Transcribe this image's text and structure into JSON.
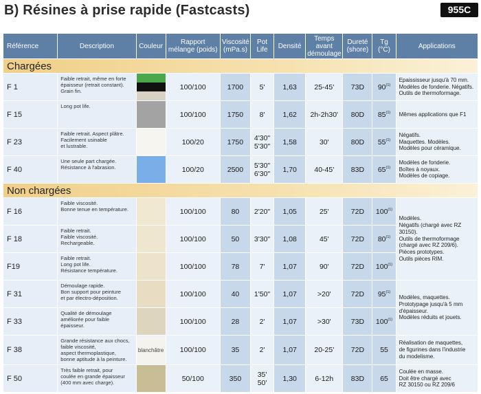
{
  "header": {
    "title": "B) Résines à prise rapide (Fastcasts)",
    "badge": "955C"
  },
  "columns": [
    "Référence",
    "Description",
    "Couleur",
    "Rapport mélange (poids)",
    "Viscosité (mPa.s)",
    "Pot Life",
    "Densité",
    "Temps avant démoulage",
    "Dureté (shore)",
    "Tg (°C)",
    "Applications"
  ],
  "sections": {
    "charged": "Chargées",
    "uncharged": "Non chargées"
  },
  "charged_rows": [
    {
      "ref": "F 1",
      "desc": [
        "Faible retrait, même en forte",
        "épaisseur (retrait constant).",
        "Grain fin."
      ],
      "colors": [
        "#4aa84a",
        "#111111",
        "#d8d2c4"
      ],
      "ratio": "100/100",
      "viscosity": "1700",
      "potlife": [
        "5'"
      ],
      "density": "1,63",
      "demold": "25-45'",
      "hardness": "73D",
      "tg": "90",
      "tg_note": "(1)",
      "apps": [
        "Epaississeur jusqu'à 70 mm.",
        "Modèles de fonderie. Négatifs.",
        "Outils de thermoformage."
      ]
    },
    {
      "ref": "F 15",
      "desc": [
        "Long pot life."
      ],
      "colors": [
        "#a3a3a3"
      ],
      "ratio": "100/100",
      "viscosity": "1750",
      "potlife": [
        "8'"
      ],
      "density": "1,62",
      "demold": "2h-2h30'",
      "hardness": "80D",
      "tg": "85",
      "tg_note": "(1)",
      "apps": [
        "Mêmes applications que F1"
      ]
    },
    {
      "ref": "F 23",
      "desc": [
        "Faible retrait. Aspect plâtre.",
        "Facilement usinable",
        "et lustrable."
      ],
      "colors": [
        "#f7f5f0"
      ],
      "ratio": "100/20",
      "viscosity": "1750",
      "potlife": [
        "4'30\"",
        "5'30\""
      ],
      "density": "1,58",
      "demold": "30'",
      "hardness": "80D",
      "tg": "55",
      "tg_note": "(1)",
      "apps": [
        "Négatifs.",
        "Maquettes. Modèles.",
        "Modèles pour céramique."
      ]
    },
    {
      "ref": "F 40",
      "desc": [
        "Une seule part chargée.",
        "Résistance à l'abrasion."
      ],
      "colors": [
        "#7aaee8"
      ],
      "ratio": "100/20",
      "viscosity": "2500",
      "potlife": [
        "5'30\"",
        "6'30\""
      ],
      "density": "1,70",
      "demold": "40-45'",
      "hardness": "83D",
      "tg": "65",
      "tg_note": "(1)",
      "apps": [
        "Modèles de fonderie.",
        "Boîtes à noyaux.",
        "Modèles de copiage."
      ]
    }
  ],
  "uncharged_rows": [
    {
      "ref": "F 16",
      "desc": [
        "Faible viscosité.",
        "Bonne tenue en température."
      ],
      "color": "#f1e8d2",
      "color_text": "",
      "ratio": "100/100",
      "viscosity": "80",
      "potlife": [
        "2'20\""
      ],
      "density": "1,05",
      "demold": "25'",
      "hardness": "72D",
      "tg": "100",
      "tg_note": "(1)"
    },
    {
      "ref": "F 18",
      "desc": [
        "Faible retrait.",
        "Faible viscosité.",
        "Rechargeable."
      ],
      "color": "#efe6d0",
      "color_text": "",
      "ratio": "100/100",
      "viscosity": "50",
      "potlife": [
        "3'30\""
      ],
      "density": "1,08",
      "demold": "45'",
      "hardness": "72D",
      "tg": "80",
      "tg_note": "(1)"
    },
    {
      "ref": "F19",
      "desc": [
        "Faible retrait.",
        "Long pot life.",
        "Résistance température."
      ],
      "color": "#ede3cb",
      "color_text": "",
      "ratio": "100/100",
      "viscosity": "78",
      "potlife": [
        "7'"
      ],
      "density": "1,07",
      "demold": "90'",
      "hardness": "72D",
      "tg": "100",
      "tg_note": "(1)"
    },
    {
      "ref": "F 31",
      "desc": [
        "Démoulage rapide.",
        "Bon support pour peinture",
        "et par électro-déposition."
      ],
      "color": "#e8dcc2",
      "color_text": "",
      "ratio": "100/100",
      "viscosity": "40",
      "potlife": [
        "1'50\""
      ],
      "density": "1,07",
      "demold": ">20'",
      "hardness": "72D",
      "tg": "95",
      "tg_note": "(1)"
    },
    {
      "ref": "F 33",
      "desc": [
        "Qualité de démoulage",
        "améliorée pour faible",
        "épaisseur."
      ],
      "color": "#ddd5bd",
      "color_text": "",
      "ratio": "100/100",
      "viscosity": "28",
      "potlife": [
        "2'"
      ],
      "density": "1,07",
      "demold": ">30'",
      "hardness": "73D",
      "tg": "100",
      "tg_note": "(1)"
    },
    {
      "ref": "F 38",
      "desc": [
        "Grande résistance aux chocs,",
        "faible viscosité,",
        "aspect thermoplastique,",
        "bonne aptitude à la peinture."
      ],
      "color": "#f5f3ee",
      "color_text": "blanchâtre",
      "ratio": "100/100",
      "viscosity": "35",
      "potlife": [
        "2'"
      ],
      "density": "1,07",
      "demold": "20-25'",
      "hardness": "72D",
      "tg": "55",
      "tg_note": ""
    },
    {
      "ref": "F 50",
      "desc": [
        "Très faible retrait, pour",
        "coulée en grande épaisseur",
        "(400 mm avec charge)."
      ],
      "color": "#c9bd96",
      "color_text": "",
      "ratio": "50/100",
      "viscosity": "350",
      "potlife": [
        "35'",
        "50'"
      ],
      "density": "1,30",
      "demold": "6-12h",
      "hardness": "83D",
      "tg": "65",
      "tg_note": ""
    }
  ],
  "uncharged_apps": {
    "group1": [
      "Modèles.",
      "Négatifs (chargé avec RZ 30150).",
      "Outils de thermoformage",
      "(chargé avec RZ 209/6).",
      "Pièces prototypes.",
      "Outils pièces RIM."
    ],
    "group2": [
      "Modèles, maquettes.",
      "Prototypage jusqu'à 5 mm",
      "d'épaisseur.",
      "Modèles réduits et jouets."
    ],
    "f38": [
      "Réalisation de maquettes,",
      "de figurines dans l'industrie",
      "du modelisme."
    ],
    "f50": [
      "Coulée en masse.",
      "Doit être chargé avec",
      "RZ 30150 ou RZ 209/6"
    ]
  }
}
